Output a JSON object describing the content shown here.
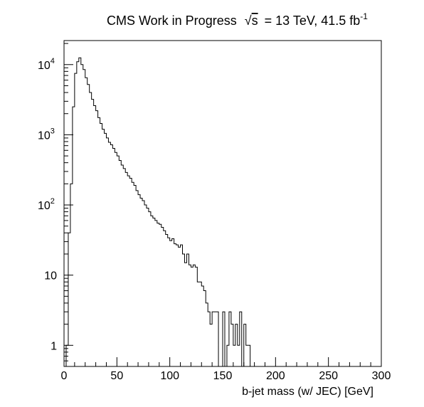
{
  "chart_data": {
    "type": "histogram",
    "title_parts": {
      "main": "CMS Work in Progress",
      "sqrt_symbol": "√",
      "sqrt_var": "s",
      "energy": "= 13 TeV, 41.5 fb",
      "lumi_exp": "-1"
    },
    "xlabel": "b-jet mass (w/ JEC) [GeV]",
    "ylabel": "",
    "xlim": [
      0,
      300
    ],
    "ylim": [
      0.5,
      22000
    ],
    "yscale": "log",
    "grid": false,
    "legend": "none",
    "line_color": "#000000",
    "x_ticks": [
      0,
      50,
      100,
      150,
      200,
      250,
      300
    ],
    "x_tick_labels": [
      "0",
      "50",
      "100",
      "150",
      "200",
      "250",
      "300"
    ],
    "y_ticks": [
      {
        "value": 1,
        "label": "1",
        "exp": ""
      },
      {
        "value": 10,
        "label": "10",
        "exp": ""
      },
      {
        "value": 100,
        "label": "10",
        "exp": "2"
      },
      {
        "value": 1000,
        "label": "10",
        "exp": "3"
      },
      {
        "value": 10000,
        "label": "10",
        "exp": "4"
      }
    ],
    "bin_width": 2,
    "bin_edges_start": 0,
    "values": [
      0,
      1,
      40,
      200,
      2500,
      7500,
      11000,
      12500,
      10000,
      8500,
      6500,
      5200,
      4000,
      3200,
      2600,
      2200,
      1750,
      1450,
      1200,
      1050,
      900,
      780,
      720,
      640,
      560,
      500,
      430,
      370,
      330,
      290,
      260,
      240,
      210,
      190,
      160,
      140,
      125,
      115,
      100,
      90,
      80,
      70,
      65,
      60,
      55,
      53,
      48,
      43,
      38,
      34,
      31,
      33,
      28,
      27,
      25,
      27,
      20,
      15,
      20,
      14,
      13,
      14,
      13,
      8,
      8,
      7,
      6,
      4,
      3,
      2,
      3,
      3,
      3,
      0.5,
      0.5,
      3,
      0,
      1,
      3,
      2,
      1,
      2,
      1,
      3,
      0,
      2,
      1,
      1,
      0.5,
      0.5,
      0.5,
      0.5,
      0,
      0.5,
      0.5,
      0.5,
      0,
      0,
      0.5,
      0,
      0.5,
      0,
      0,
      0,
      0,
      0,
      0,
      0,
      0,
      0,
      0,
      0,
      0,
      0,
      0,
      0,
      0,
      0,
      0,
      0,
      0,
      0,
      0,
      0,
      0,
      0,
      0,
      0,
      0,
      0,
      0,
      0,
      0,
      0,
      0,
      0,
      0,
      0,
      0,
      0,
      0,
      0,
      0,
      0,
      0,
      0,
      0,
      0,
      0,
      0
    ]
  }
}
